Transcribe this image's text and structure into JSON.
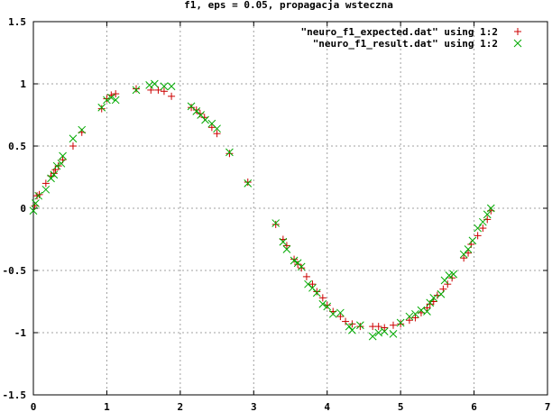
{
  "chart_data": {
    "type": "scatter",
    "title": "f1, eps = 0.05, propagacja wsteczna",
    "xlabel": "",
    "ylabel": "",
    "xlim": [
      0,
      7
    ],
    "ylim": [
      -1.5,
      1.5
    ],
    "x_ticks": [
      "0",
      "1",
      "2",
      "3",
      "4",
      "5",
      "6",
      "7"
    ],
    "y_ticks": [
      "1.5",
      "1",
      "0.5",
      "0",
      "-0.5",
      "-1",
      "-1.5"
    ],
    "grid": true,
    "legend_position": "top-right",
    "series": [
      {
        "name": "\"neuro_f1_expected.dat\" using 1:2",
        "marker": "plus",
        "color": "#cc0000",
        "points": [
          [
            0.02,
            0.02
          ],
          [
            0.05,
            0.1
          ],
          [
            0.08,
            0.11
          ],
          [
            0.17,
            0.2
          ],
          [
            0.24,
            0.26
          ],
          [
            0.28,
            0.28
          ],
          [
            0.3,
            0.31
          ],
          [
            0.34,
            0.34
          ],
          [
            0.4,
            0.39
          ],
          [
            0.54,
            0.5
          ],
          [
            0.66,
            0.61
          ],
          [
            0.93,
            0.8
          ],
          [
            1.0,
            0.88
          ],
          [
            1.06,
            0.91
          ],
          [
            1.12,
            0.92
          ],
          [
            1.4,
            0.96
          ],
          [
            1.6,
            0.95
          ],
          [
            1.7,
            0.95
          ],
          [
            1.78,
            0.94
          ],
          [
            1.88,
            0.9
          ],
          [
            2.15,
            0.81
          ],
          [
            2.22,
            0.79
          ],
          [
            2.27,
            0.76
          ],
          [
            2.33,
            0.73
          ],
          [
            2.43,
            0.65
          ],
          [
            2.5,
            0.6
          ],
          [
            2.67,
            0.44
          ],
          [
            2.92,
            0.21
          ],
          [
            3.3,
            -0.13
          ],
          [
            3.4,
            -0.25
          ],
          [
            3.45,
            -0.3
          ],
          [
            3.55,
            -0.41
          ],
          [
            3.6,
            -0.45
          ],
          [
            3.65,
            -0.48
          ],
          [
            3.72,
            -0.55
          ],
          [
            3.8,
            -0.61
          ],
          [
            3.86,
            -0.67
          ],
          [
            3.94,
            -0.72
          ],
          [
            4.0,
            -0.78
          ],
          [
            4.08,
            -0.83
          ],
          [
            4.18,
            -0.87
          ],
          [
            4.25,
            -0.91
          ],
          [
            4.34,
            -0.93
          ],
          [
            4.45,
            -0.95
          ],
          [
            4.62,
            -0.95
          ],
          [
            4.7,
            -0.95
          ],
          [
            4.78,
            -0.96
          ],
          [
            4.9,
            -0.94
          ],
          [
            5.0,
            -0.93
          ],
          [
            5.12,
            -0.9
          ],
          [
            5.2,
            -0.88
          ],
          [
            5.28,
            -0.84
          ],
          [
            5.36,
            -0.8
          ],
          [
            5.4,
            -0.77
          ],
          [
            5.45,
            -0.75
          ],
          [
            5.5,
            -0.7
          ],
          [
            5.58,
            -0.65
          ],
          [
            5.64,
            -0.61
          ],
          [
            5.7,
            -0.56
          ],
          [
            5.86,
            -0.4
          ],
          [
            5.92,
            -0.36
          ],
          [
            5.96,
            -0.29
          ],
          [
            6.05,
            -0.22
          ],
          [
            6.12,
            -0.16
          ],
          [
            6.18,
            -0.09
          ],
          [
            6.23,
            -0.02
          ]
        ]
      },
      {
        "name": "\"neuro_f1_result.dat\" using 1:2",
        "marker": "cross",
        "color": "#00aa00",
        "points": [
          [
            0.0,
            -0.02
          ],
          [
            0.03,
            0.04
          ],
          [
            0.07,
            0.1
          ],
          [
            0.17,
            0.15
          ],
          [
            0.24,
            0.24
          ],
          [
            0.28,
            0.27
          ],
          [
            0.32,
            0.34
          ],
          [
            0.38,
            0.36
          ],
          [
            0.4,
            0.42
          ],
          [
            0.54,
            0.56
          ],
          [
            0.66,
            0.63
          ],
          [
            0.93,
            0.81
          ],
          [
            1.0,
            0.87
          ],
          [
            1.06,
            0.89
          ],
          [
            1.12,
            0.87
          ],
          [
            1.4,
            0.95
          ],
          [
            1.58,
            0.99
          ],
          [
            1.65,
            1.0
          ],
          [
            1.78,
            0.98
          ],
          [
            1.88,
            0.98
          ],
          [
            2.15,
            0.82
          ],
          [
            2.22,
            0.78
          ],
          [
            2.28,
            0.75
          ],
          [
            2.34,
            0.71
          ],
          [
            2.43,
            0.68
          ],
          [
            2.5,
            0.64
          ],
          [
            2.67,
            0.45
          ],
          [
            2.92,
            0.2
          ],
          [
            3.3,
            -0.12
          ],
          [
            3.4,
            -0.27
          ],
          [
            3.45,
            -0.33
          ],
          [
            3.55,
            -0.42
          ],
          [
            3.6,
            -0.44
          ],
          [
            3.65,
            -0.47
          ],
          [
            3.74,
            -0.61
          ],
          [
            3.8,
            -0.64
          ],
          [
            3.86,
            -0.68
          ],
          [
            3.94,
            -0.77
          ],
          [
            4.0,
            -0.79
          ],
          [
            4.08,
            -0.85
          ],
          [
            4.18,
            -0.84
          ],
          [
            4.3,
            -0.95
          ],
          [
            4.34,
            -0.98
          ],
          [
            4.45,
            -0.94
          ],
          [
            4.62,
            -1.03
          ],
          [
            4.7,
            -1.0
          ],
          [
            4.78,
            -0.99
          ],
          [
            4.9,
            -1.01
          ],
          [
            5.0,
            -0.92
          ],
          [
            5.12,
            -0.87
          ],
          [
            5.2,
            -0.85
          ],
          [
            5.28,
            -0.82
          ],
          [
            5.36,
            -0.83
          ],
          [
            5.4,
            -0.76
          ],
          [
            5.45,
            -0.72
          ],
          [
            5.55,
            -0.69
          ],
          [
            5.6,
            -0.58
          ],
          [
            5.66,
            -0.54
          ],
          [
            5.72,
            -0.53
          ],
          [
            5.86,
            -0.37
          ],
          [
            5.92,
            -0.33
          ],
          [
            5.98,
            -0.26
          ],
          [
            6.05,
            -0.16
          ],
          [
            6.12,
            -0.11
          ],
          [
            6.18,
            -0.05
          ],
          [
            6.23,
            0.0
          ]
        ]
      }
    ]
  }
}
